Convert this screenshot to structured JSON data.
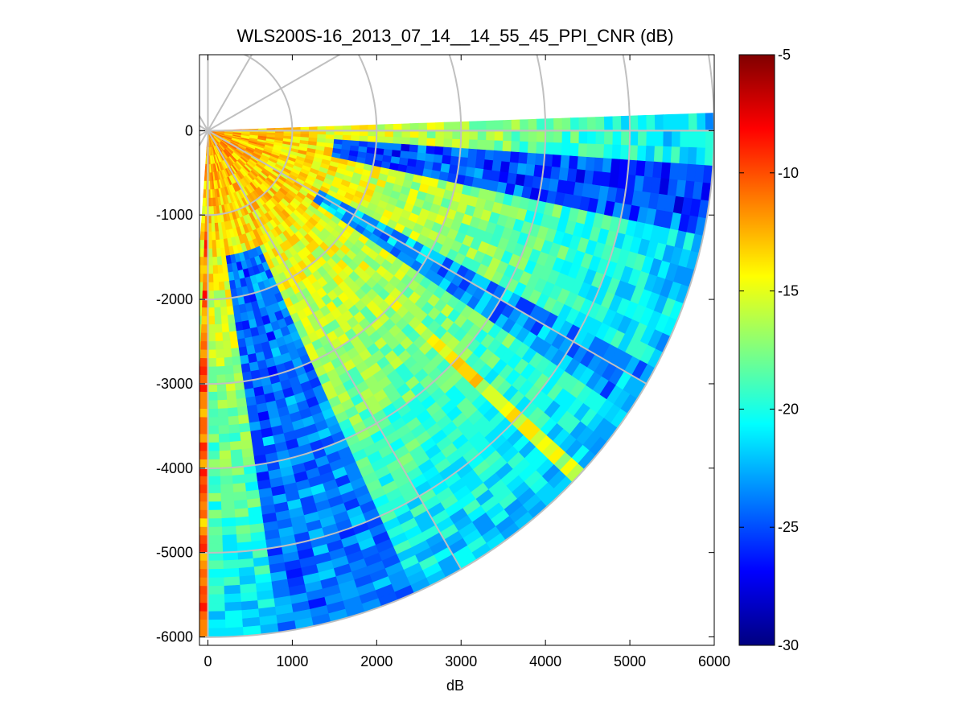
{
  "chart_data": {
    "type": "heatmap",
    "subtype": "ppi-polar-sector",
    "title": "WLS200S-16_2013_07_14__14_55_45_PPI_CNR (dB)",
    "xlabel": "dB",
    "ylabel": "",
    "xlim": [
      -100,
      6000
    ],
    "ylim": [
      -6100,
      900
    ],
    "xticks": [
      0,
      1000,
      2000,
      3000,
      4000,
      5000,
      6000
    ],
    "yticks": [
      0,
      -1000,
      -2000,
      -3000,
      -4000,
      -5000,
      -6000
    ],
    "sector": {
      "azimuth_start_deg": 88,
      "azimuth_end_deg": 183,
      "max_range": 6000,
      "range_gate": 100,
      "azimuth_step_deg": 2
    },
    "polar_grid": {
      "range_rings": [
        1000,
        2000,
        3000,
        4000,
        5000,
        6000
      ],
      "radial_bearings_deg": [
        0,
        30,
        60,
        90,
        120,
        150,
        180
      ]
    },
    "colorbar": {
      "colormap": "jet",
      "clim": [
        -30,
        -5
      ],
      "ticks": [
        -5,
        -10,
        -15,
        -20,
        -25,
        -30
      ]
    },
    "cnr_profile": {
      "near_range_cnr_db": -12,
      "decay_db_per_km": 1.6,
      "floor_db": -27,
      "low_cnr_bands": [
        {
          "azimuth_from_deg": 95,
          "azimuth_to_deg": 101,
          "cnr_db": -26
        },
        {
          "azimuth_from_deg": 119,
          "azimuth_to_deg": 123,
          "cnr_db": -24
        },
        {
          "azimuth_from_deg": 157,
          "azimuth_to_deg": 172,
          "cnr_db": -25
        }
      ],
      "high_cnr_features": [
        {
          "azimuth_deg": 181,
          "range_from": 1000,
          "range_to": 6000,
          "cnr_db": -12
        },
        {
          "azimuth_deg": 133,
          "range_from": 3000,
          "range_to": 6000,
          "cnr_db": -16
        }
      ]
    }
  }
}
